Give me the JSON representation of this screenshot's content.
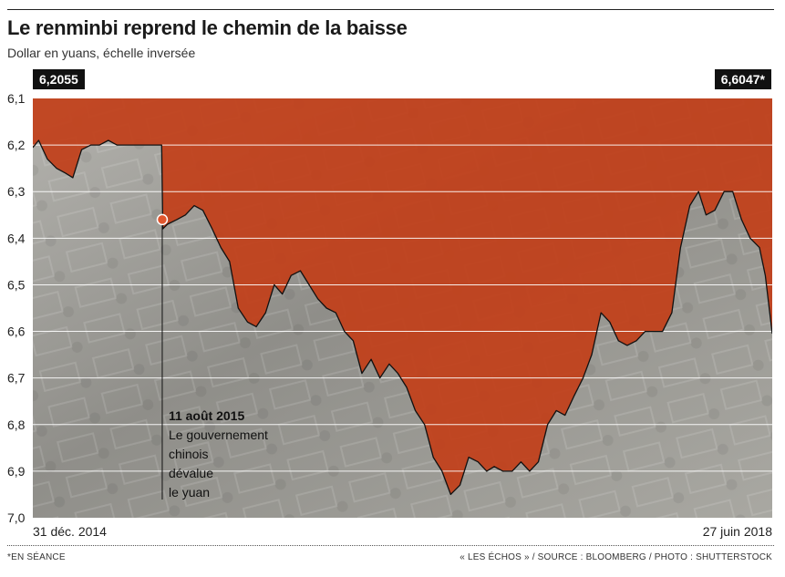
{
  "header": {
    "title": "Le renminbi reprend le chemin de la baisse",
    "subtitle": "Dollar en yuans, échelle inversée"
  },
  "callouts": {
    "start_value": "6,2055",
    "end_value": "6,6047*"
  },
  "annotation": {
    "lines": [
      "11 août 2015",
      "Le gouvernement",
      "chinois",
      "dévalue",
      "le yuan"
    ]
  },
  "footer": {
    "footnote": "*EN SÉANCE",
    "source": "« LES ÉCHOS » / SOURCE : BLOOMBERG / PHOTO : SHUTTERSTOCK"
  },
  "colors": {
    "area_fill": "#c2401a",
    "background_photo": "#9a9a94",
    "marker": "#e0562e",
    "line": "#111111",
    "grid": "#ffffff"
  },
  "chart_data": {
    "type": "area",
    "title": "Le renminbi reprend le chemin de la baisse",
    "subtitle": "Dollar en yuans, échelle inversée",
    "ylabel": "",
    "xlabel": "",
    "y_inverted": true,
    "ylim": [
      6.1,
      7.0
    ],
    "grid": true,
    "y_ticks": [
      "6,1",
      "6,2",
      "6,3",
      "6,4",
      "6,5",
      "6,6",
      "6,7",
      "6,8",
      "6,9",
      "7,0"
    ],
    "x_tick_labels": [
      "31 déc. 2014",
      "27 juin 2018"
    ],
    "xlim": [
      "2014-12-31",
      "2018-06-27"
    ],
    "series": [
      {
        "x": [
          "2014-12-31",
          "2015-01-10",
          "2015-01-25",
          "2015-02-10",
          "2015-02-25",
          "2015-03-10",
          "2015-03-25",
          "2015-04-10",
          "2015-04-25",
          "2015-05-10",
          "2015-05-25",
          "2015-06-10",
          "2015-06-25",
          "2015-07-10",
          "2015-07-25",
          "2015-08-10",
          "2015-08-12",
          "2015-08-20",
          "2015-09-05",
          "2015-09-20",
          "2015-10-05",
          "2015-10-20",
          "2015-11-05",
          "2015-11-20",
          "2015-12-05",
          "2015-12-20",
          "2016-01-05",
          "2016-01-20",
          "2016-02-05",
          "2016-02-20",
          "2016-03-05",
          "2016-03-20",
          "2016-04-05",
          "2016-04-20",
          "2016-05-05",
          "2016-05-20",
          "2016-06-05",
          "2016-06-20",
          "2016-07-05",
          "2016-07-20",
          "2016-08-05",
          "2016-08-20",
          "2016-09-05",
          "2016-09-20",
          "2016-10-05",
          "2016-10-20",
          "2016-11-05",
          "2016-11-20",
          "2016-12-05",
          "2016-12-20",
          "2017-01-05",
          "2017-01-20",
          "2017-02-05",
          "2017-02-20",
          "2017-03-05",
          "2017-03-20",
          "2017-04-05",
          "2017-04-20",
          "2017-05-05",
          "2017-05-20",
          "2017-06-05",
          "2017-06-20",
          "2017-07-05",
          "2017-07-20",
          "2017-08-05",
          "2017-08-20",
          "2017-09-05",
          "2017-09-20",
          "2017-10-05",
          "2017-10-20",
          "2017-11-05",
          "2017-11-20",
          "2017-12-05",
          "2017-12-20",
          "2018-01-05",
          "2018-01-20",
          "2018-02-05",
          "2018-02-20",
          "2018-03-05",
          "2018-03-20",
          "2018-04-05",
          "2018-04-20",
          "2018-05-05",
          "2018-05-20",
          "2018-06-05",
          "2018-06-15",
          "2018-06-27"
        ],
        "values": [
          6.2055,
          6.19,
          6.23,
          6.25,
          6.26,
          6.27,
          6.21,
          6.2,
          6.2,
          6.19,
          6.2,
          6.2,
          6.2,
          6.2,
          6.2,
          6.2,
          6.38,
          6.37,
          6.36,
          6.35,
          6.33,
          6.34,
          6.38,
          6.42,
          6.45,
          6.55,
          6.58,
          6.59,
          6.56,
          6.5,
          6.52,
          6.48,
          6.47,
          6.5,
          6.53,
          6.55,
          6.56,
          6.6,
          6.62,
          6.69,
          6.66,
          6.7,
          6.67,
          6.69,
          6.72,
          6.77,
          6.8,
          6.87,
          6.9,
          6.95,
          6.93,
          6.87,
          6.88,
          6.9,
          6.89,
          6.9,
          6.9,
          6.88,
          6.9,
          6.88,
          6.8,
          6.77,
          6.78,
          6.74,
          6.7,
          6.65,
          6.56,
          6.58,
          6.62,
          6.63,
          6.62,
          6.6,
          6.6,
          6.6,
          6.56,
          6.42,
          6.33,
          6.3,
          6.35,
          6.34,
          6.3,
          6.3,
          6.36,
          6.4,
          6.42,
          6.48,
          6.6047
        ]
      }
    ],
    "event_marker": {
      "date": "2015-08-11",
      "value": 6.36
    }
  }
}
